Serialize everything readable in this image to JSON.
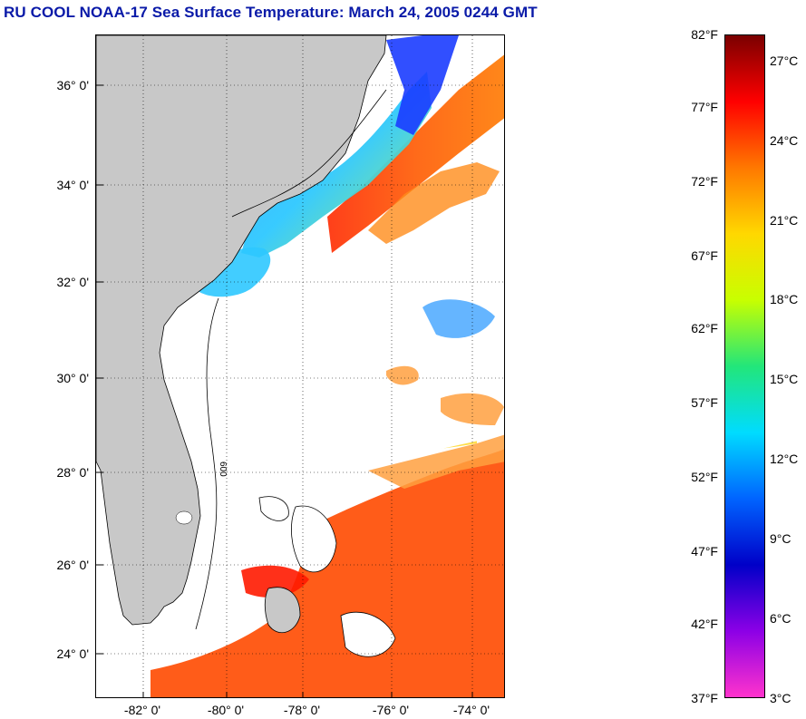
{
  "title": "RU COOL  NOAA-17  Sea Surface Temperature:  March 24, 2005 0244 GMT",
  "map": {
    "lat_labels": [
      "36° 0'",
      "34° 0'",
      "32° 0'",
      "30° 0'",
      "28° 0'",
      "26° 0'",
      "24° 0'"
    ],
    "lon_labels": [
      "-82° 0'",
      "-80° 0'",
      "-78° 0'",
      "-76° 0'",
      "-74° 0'"
    ],
    "land_color": "#c8c8c8",
    "cloud_color": "#ffffff",
    "isobath_label": "600"
  },
  "colorbar": {
    "f_labels": [
      "82°F",
      "77°F",
      "72°F",
      "67°F",
      "62°F",
      "57°F",
      "52°F",
      "47°F",
      "42°F",
      "37°F"
    ],
    "c_labels": [
      "27°C",
      "24°C",
      "21°C",
      "18°C",
      "15°C",
      "12°C",
      "9°C",
      "6°C",
      "3°C"
    ],
    "colors_top_to_bottom": [
      "#7a0000",
      "#ff0000",
      "#ff7800",
      "#ffd800",
      "#c8ff00",
      "#22e67a",
      "#00dcff",
      "#0064ff",
      "#0000c8",
      "#8c00e6",
      "#ff33cc"
    ]
  }
}
